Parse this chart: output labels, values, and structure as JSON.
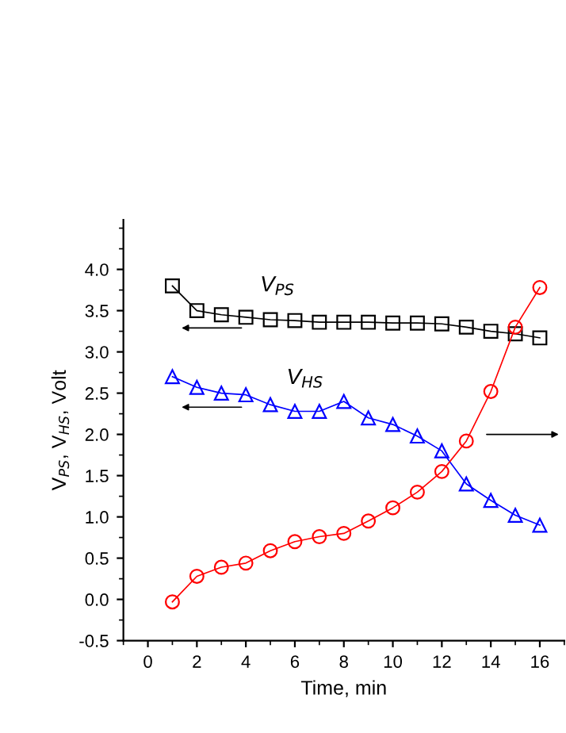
{
  "chart_data": {
    "type": "line",
    "xlabel": "Time, min",
    "ylabel": "V$_{PS}$, V$_{HS}$, Volt",
    "x": [
      1,
      2,
      3,
      4,
      5,
      6,
      7,
      8,
      9,
      10,
      11,
      12,
      13,
      14,
      15,
      16
    ],
    "series": [
      {
        "name": "V$_{PS}$",
        "color": "#000000",
        "marker": "square",
        "values": [
          3.8,
          3.5,
          3.45,
          3.42,
          3.39,
          3.38,
          3.36,
          3.36,
          3.36,
          3.35,
          3.35,
          3.34,
          3.3,
          3.25,
          3.22,
          3.17
        ]
      },
      {
        "name": "V$_{HS}$",
        "color": "#0000ff",
        "marker": "triangle",
        "values": [
          2.7,
          2.57,
          2.5,
          2.48,
          2.36,
          2.28,
          2.28,
          2.4,
          2.2,
          2.12,
          1.98,
          1.8,
          1.4,
          1.2,
          1.02,
          0.9
        ]
      },
      {
        "color": "#ff0000",
        "marker": "circle",
        "values": [
          -0.03,
          0.28,
          0.39,
          0.44,
          0.59,
          0.7,
          0.76,
          0.8,
          0.95,
          1.11,
          1.3,
          1.55,
          1.92,
          2.52,
          3.3,
          3.78
        ]
      }
    ],
    "xlim": [
      -1,
      17
    ],
    "ylim": [
      -0.5,
      4.6
    ],
    "xticks": [
      0,
      2,
      4,
      6,
      8,
      10,
      12,
      14,
      16
    ],
    "yticks": [
      -0.5,
      {
        "value": 0,
        "label": "0.0"
      },
      0.5,
      {
        "value": 1,
        "label": "1.0"
      },
      1.5,
      {
        "value": 2,
        "label": "2.0"
      },
      2.5,
      {
        "value": 3,
        "label": "3.0"
      },
      3.5,
      {
        "value": 4,
        "label": "4.0"
      }
    ],
    "grid": false,
    "legend": false,
    "line_style": "solid"
  }
}
